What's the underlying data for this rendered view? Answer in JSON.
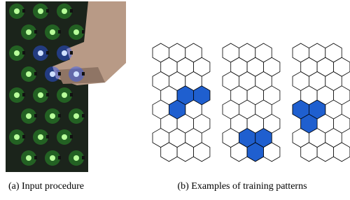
{
  "captions": {
    "a": "(a) Input procedure",
    "b": "(b) Examples of training patterns"
  },
  "patterns": [
    {
      "filled": [
        [
          3,
          1
        ],
        [
          3,
          2
        ],
        [
          4,
          1
        ]
      ]
    },
    {
      "filled": [
        [
          6,
          1
        ],
        [
          6,
          2
        ],
        [
          7,
          1
        ]
      ]
    },
    {
      "filled": [
        [
          4,
          0
        ],
        [
          4,
          1
        ],
        [
          5,
          0
        ]
      ]
    }
  ]
}
